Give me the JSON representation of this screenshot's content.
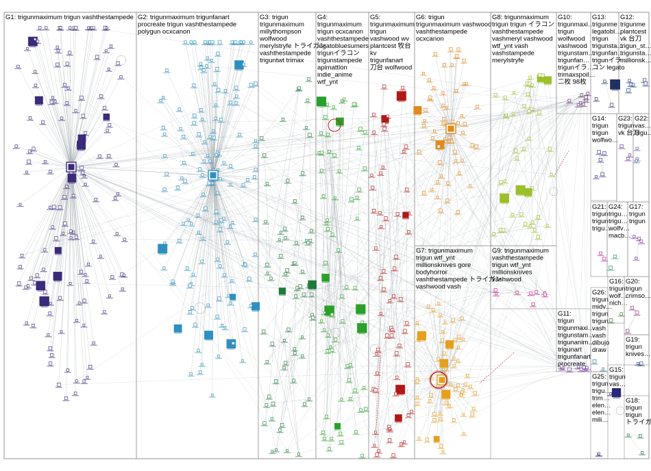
{
  "graph": {
    "colors": {
      "border": "#8a8a8a",
      "edge": "#9aa3a8",
      "edge_red": "#cc2222",
      "node_fill": "#f2f2f2"
    },
    "groups": [
      {
        "id": "G1",
        "title": "G1: trigunmaximum trigun vashthestampede",
        "color": "#3b2a7a",
        "shape": "hub"
      },
      {
        "id": "G2",
        "title": "G2: trigunmaximum trigunfanart procreate trigun vashthestampede polygun ocxcanon",
        "color": "#2f8fc0",
        "shape": "hub"
      },
      {
        "id": "G3",
        "title": "G3: trigun trigunmaximum millythompson wolfwood merylstryfe トライガン vashthestampede triguntwt trimax",
        "color": "#1f7a3a",
        "shape": "scatter"
      },
      {
        "id": "G4",
        "title": "G4: trigunmaximum trigun ocxcanon vashthestampede legatobluesumers trigunイラコン trigunstampede apimattion indie_anime wtf_ynt",
        "color": "#2aa02a",
        "shape": "scatter"
      },
      {
        "id": "G5",
        "title": "G5: trigunmaximum trigun vashwood wv plantcest 牧台 kv trigunfanart 刀台 wolfwood",
        "color": "#b01818",
        "shape": "scatter"
      },
      {
        "id": "G6",
        "title": "G6: trigun trigunmaximum vashwood vashthestampede ocxcanon",
        "color": "#e08a1e",
        "shape": "hub"
      },
      {
        "id": "G7",
        "title": "G7: trigunmaximum trigun wtf_ynt millionsknives gore bodyhorror vashthestampede トライガン vashwood vash",
        "color": "#e6a020",
        "shape": "hub"
      },
      {
        "id": "G8",
        "title": "G8: trigunmaximum trigun trigun イラコン vashthestampede vashmeryl vashwood wtf_ynt vash vashstampede merylstryfe",
        "color": "#9bbf2a",
        "shape": "scatter"
      },
      {
        "id": "G9",
        "title": "G9: trigunmaximum vashthestampede trigun wtf_ynt millionsknives vashwood",
        "color": "#c02080",
        "shape": "scatter"
      },
      {
        "id": "G10",
        "title": "G10: trigunmaxi… trigun wolfwood vashwood trigunstam… trigunfan… trigunイラ… trimaxspoil… 二枚 98枚 wtf_ynt",
        "color": "#5a2a6a",
        "shape": "scatter"
      },
      {
        "id": "G11",
        "title": "G11: trigun trigunmaxi… trigunstam… trigunanim… trigunart trigunfanart procreate",
        "color": "#7030a0",
        "shape": "scatter"
      },
      {
        "id": "G12",
        "title": "G12: trigunme plantcest vk 台刀 trigun_st… trigunsta… millionsk…",
        "color": "#1f3a8a",
        "shape": "row"
      },
      {
        "id": "G13",
        "title": "G13: trigunme legatobl… trigun trigunsta… trigunfan… trigunイラ… コン legato",
        "color": "#203060",
        "shape": "row"
      },
      {
        "id": "G14",
        "title": "G14: trigun trigun wolfwo…",
        "color": "#303090",
        "shape": "row"
      },
      {
        "id": "G15",
        "title": "G15: trigun vas…",
        "color": "#2a2a7a",
        "shape": "row"
      },
      {
        "id": "G16",
        "title": "G16: trigun wolf… nich…",
        "color": "#2a6a2a",
        "shape": "row"
      },
      {
        "id": "G17",
        "title": "G17: trigun trigun",
        "color": "#7a2a9a",
        "shape": "row"
      },
      {
        "id": "G18",
        "title": "G18: trigun trigun トライガン",
        "color": "#1a6a3a",
        "shape": "row"
      },
      {
        "id": "G19",
        "title": "G19: trigun knives…",
        "color": "#1a3a7a",
        "shape": "row"
      },
      {
        "id": "G20",
        "title": "G20: trigun crimso…",
        "color": "#9a2a7a",
        "shape": "row"
      },
      {
        "id": "G21",
        "title": "G21: trigun trigun trigu…",
        "color": "#c0209a",
        "shape": "row"
      },
      {
        "id": "G22",
        "title": "G22: vas… trigu…",
        "color": "#3a5a9a",
        "shape": "row"
      },
      {
        "id": "G23",
        "title": "G23: trigun vk 台刀",
        "color": "#6a2a9a",
        "shape": "row"
      },
      {
        "id": "G24",
        "title": "G24: trigu… trigu… wolfv… macb…",
        "color": "#2a8a6a",
        "shape": "row"
      },
      {
        "id": "G25",
        "title": "G25: trigun trigu… trim… elen… elen… mili…",
        "color": "#3a3a8a",
        "shape": "row"
      },
      {
        "id": "G26",
        "title": "G26: trigun midv… trigun trigun vash vash dibujo draw",
        "color": "#2a7a9a",
        "shape": "row"
      }
    ]
  }
}
